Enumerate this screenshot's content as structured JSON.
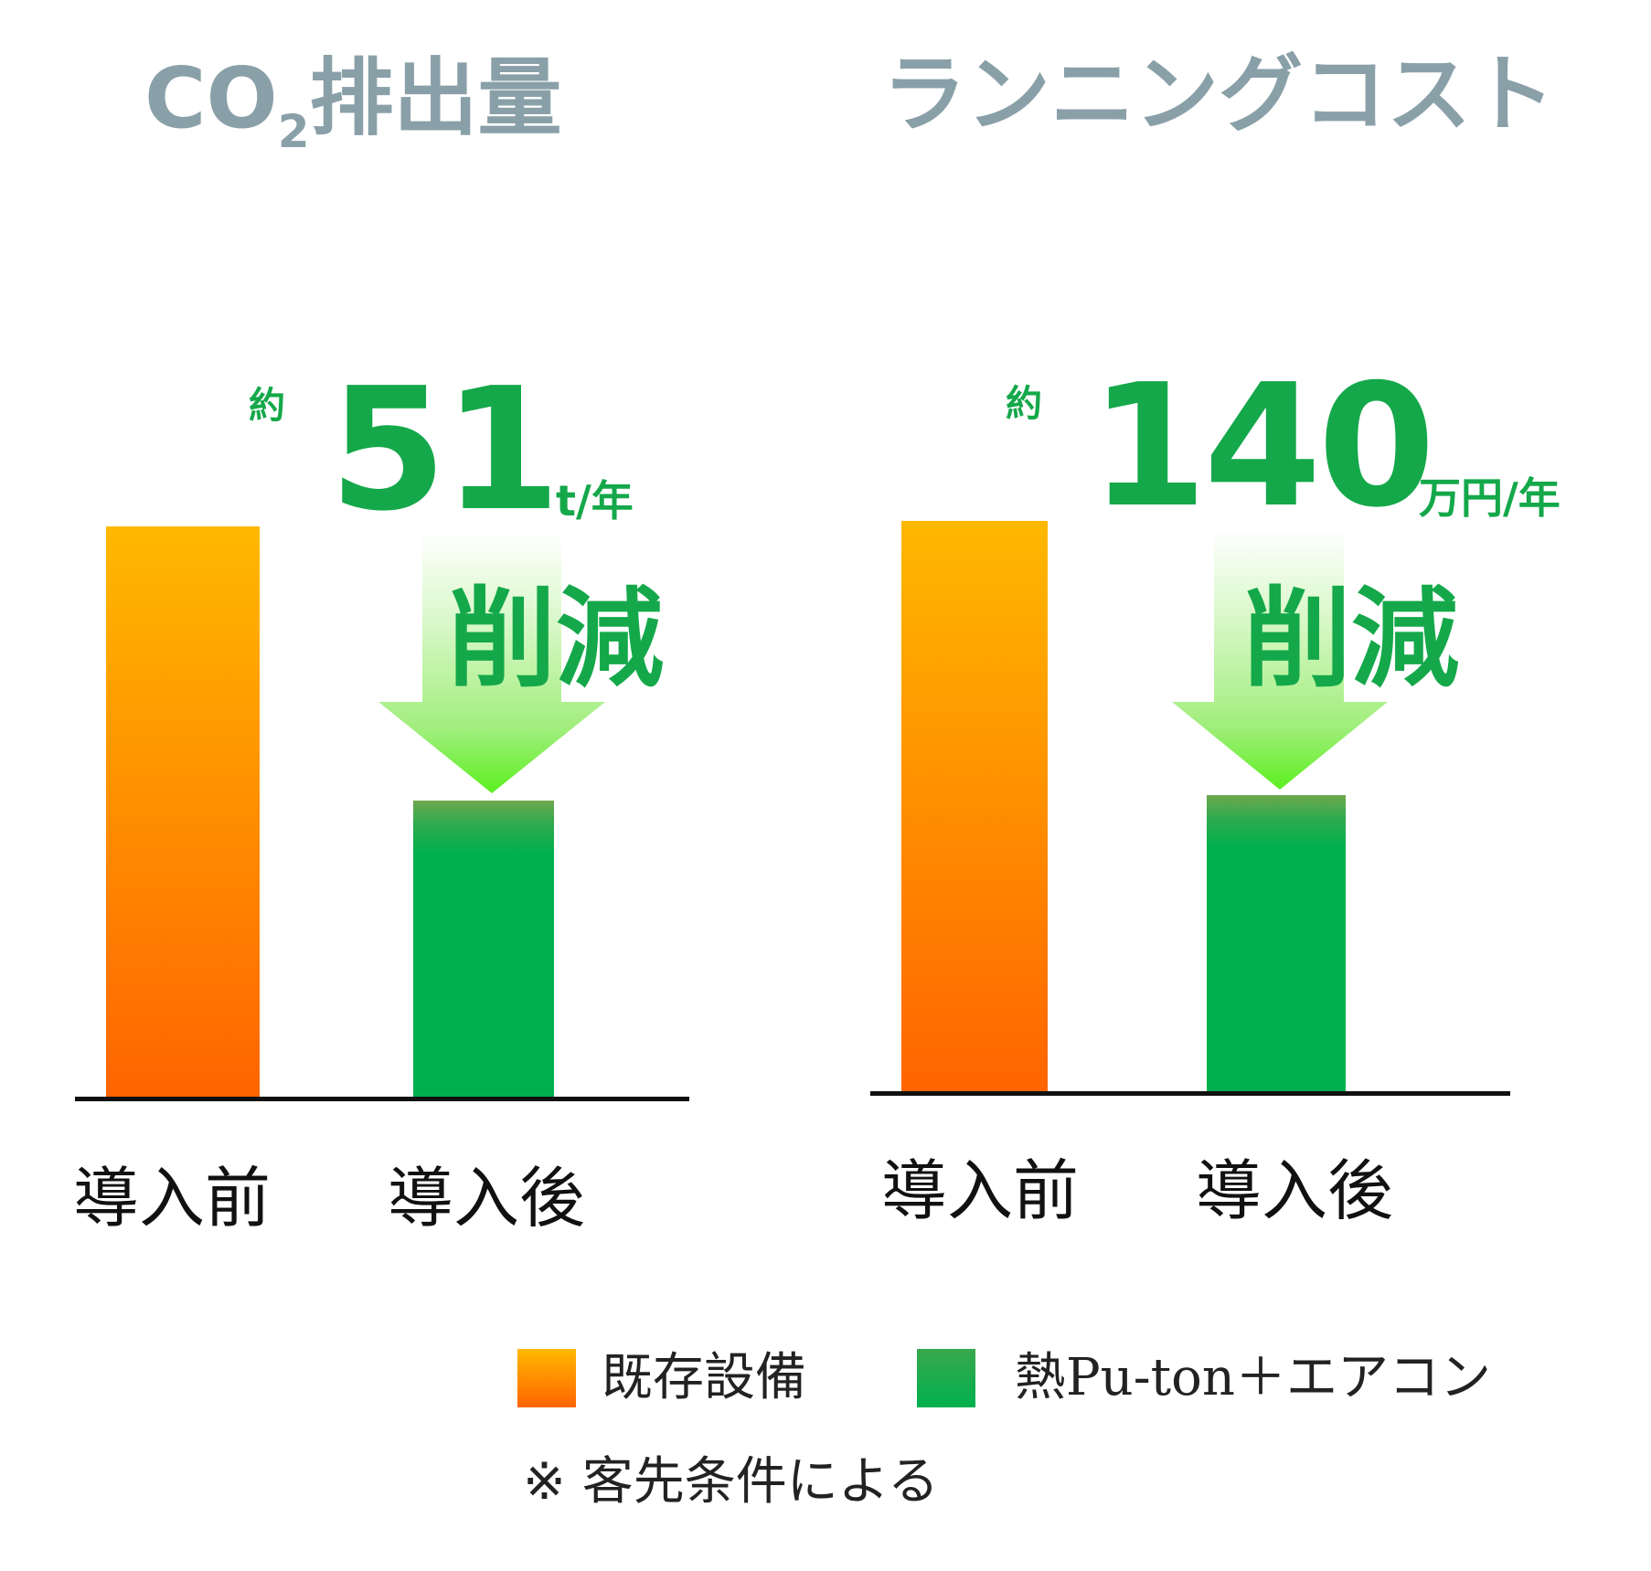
{
  "chart_data": [
    {
      "type": "bar",
      "title": "CO₂排出量",
      "title_main": "CO",
      "title_sub": "2",
      "title_rest": "排出量",
      "categories": [
        "導入前",
        "導入後"
      ],
      "series": [
        {
          "name": "既存設備",
          "values": [
            100,
            null
          ]
        },
        {
          "name": "熱Pu-ton＋エアコン",
          "values": [
            null,
            52
          ]
        }
      ],
      "ylim": [
        0,
        100
      ],
      "annotation": {
        "prefix": "約",
        "value": "51",
        "unit": "t/年",
        "label": "削減"
      }
    },
    {
      "type": "bar",
      "title": "ランニングコスト",
      "categories": [
        "導入前",
        "導入後"
      ],
      "series": [
        {
          "name": "既存設備",
          "values": [
            100,
            null
          ]
        },
        {
          "name": "熱Pu-ton＋エアコン",
          "values": [
            null,
            52
          ]
        }
      ],
      "ylim": [
        0,
        100
      ],
      "annotation": {
        "prefix": "約",
        "value": "140",
        "unit": "万円/年",
        "label": "削減"
      }
    }
  ],
  "legend": [
    {
      "label": "既存設備",
      "color": "#ff8a00"
    },
    {
      "label": "熱Pu-ton＋エアコン",
      "color": "#00b04e"
    }
  ],
  "note": "※ 客先条件による"
}
